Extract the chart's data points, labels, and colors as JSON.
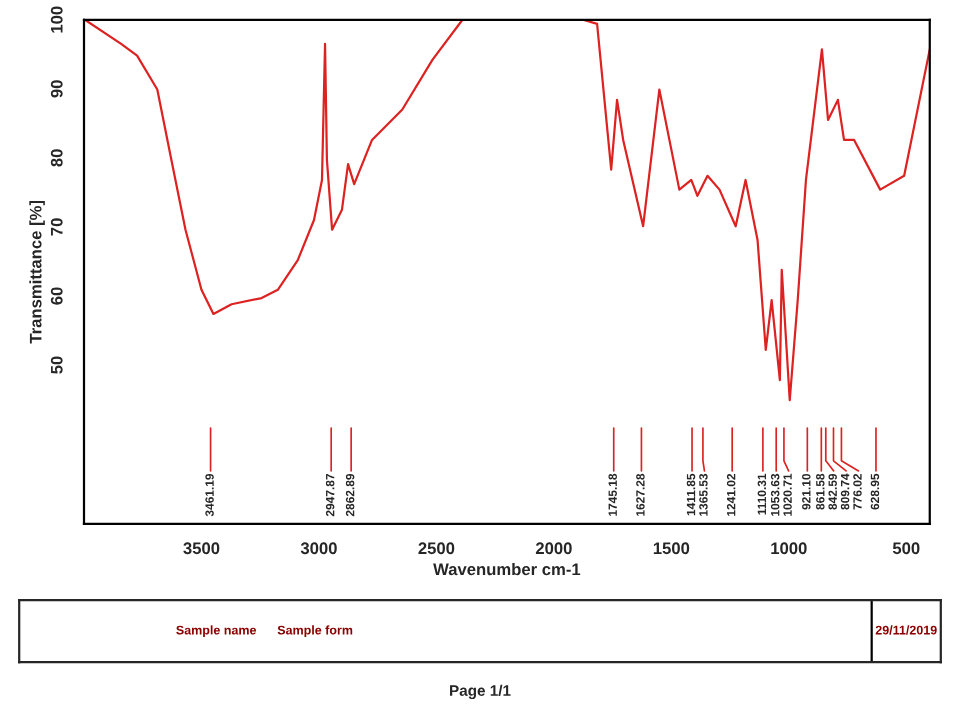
{
  "chart_data": {
    "type": "line",
    "xlabel": "Wavenumber cm-1",
    "ylabel": "Transmittance [%]",
    "xlim": [
      4000,
      400
    ],
    "xticks": [
      3500,
      3000,
      2500,
      2000,
      1500,
      1000,
      500
    ],
    "ylim": [
      27,
      100
    ],
    "yticks": [
      50,
      60,
      70,
      80,
      90,
      100
    ],
    "grid": false,
    "legend": false,
    "line_style": "solid",
    "marker": "none",
    "series": [
      {
        "color": "#dd2222",
        "x": [
          3996,
          3842,
          3774,
          3688,
          3628,
          3568,
          3500,
          3449,
          3372,
          3244,
          3175,
          3090,
          3021,
          2987,
          2974,
          2966,
          2944,
          2902,
          2876,
          2850,
          2774,
          2645,
          2517,
          2389,
          1876,
          1816,
          1756,
          1731,
          1705,
          1620,
          1551,
          1466,
          1415,
          1389,
          1346,
          1295,
          1226,
          1184,
          1133,
          1098,
          1073,
          1038,
          1030,
          996,
          962,
          927,
          859,
          833,
          791,
          765,
          722,
          611,
          509,
          400
        ],
        "values": [
          100,
          96.5,
          94.8,
          89.9,
          79.7,
          69.6,
          60.9,
          57.4,
          58.8,
          59.7,
          60.9,
          65.2,
          71,
          76.8,
          96.5,
          79.7,
          69.6,
          72.5,
          79.1,
          76.2,
          82.6,
          87,
          94.2,
          100,
          100,
          99.4,
          78.3,
          88.4,
          82.6,
          70.1,
          89.9,
          75.4,
          76.8,
          74.5,
          77.4,
          75.4,
          70.1,
          76.8,
          68.1,
          52.2,
          59.4,
          47.8,
          63.8,
          44.9,
          59.4,
          76.8,
          95.7,
          85.5,
          88.4,
          82.6,
          82.6,
          75.4,
          77.4,
          95.7
        ]
      }
    ],
    "ref_lines": [
      {
        "axis": "x",
        "value": 3461.19,
        "label": "3461.19"
      },
      {
        "axis": "x",
        "value": 2947.87,
        "label": "2947.87"
      },
      {
        "axis": "x",
        "value": 2862.89,
        "label": "2862.89"
      },
      {
        "axis": "x",
        "value": 1745.18,
        "label": "1745.18"
      },
      {
        "axis": "x",
        "value": 1627.28,
        "label": "1627.28"
      },
      {
        "axis": "x",
        "value": 1411.85,
        "label": "1411.85"
      },
      {
        "axis": "x",
        "value": 1365.53,
        "label": "1365.53"
      },
      {
        "axis": "x",
        "value": 1241.02,
        "label": "1241.02"
      },
      {
        "axis": "x",
        "value": 1110.31,
        "label": "1110.31"
      },
      {
        "axis": "x",
        "value": 1053.63,
        "label": "1053.63"
      },
      {
        "axis": "x",
        "value": 1020.71,
        "label": "1020.71"
      },
      {
        "axis": "x",
        "value": 921.1,
        "label": "921.10"
      },
      {
        "axis": "x",
        "value": 861.58,
        "label": "861.58"
      },
      {
        "axis": "x",
        "value": 842.59,
        "label": "842.59"
      },
      {
        "axis": "x",
        "value": 809.74,
        "label": "809.74"
      },
      {
        "axis": "x",
        "value": 776.02,
        "label": "776.02"
      },
      {
        "axis": "x",
        "value": 628.95,
        "label": "628.95"
      }
    ],
    "annotations": [
      "Sample name",
      "Sample form",
      "29/11/2019",
      "Page 1/1"
    ]
  }
}
